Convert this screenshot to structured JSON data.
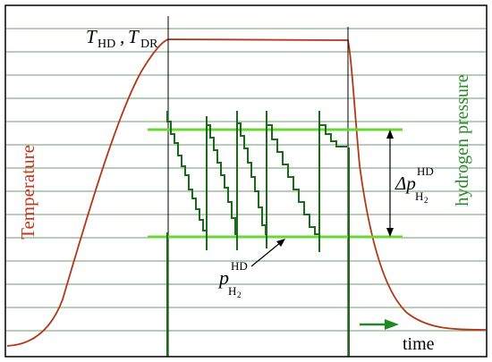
{
  "labels": {
    "temperature_axis": "Temperature",
    "pressure_axis": "hydrogen pressure",
    "time": "time",
    "t_hd_main": "T",
    "t_hd_sub": "HD",
    "comma": ",",
    "t_dr_main": "T",
    "t_dr_sub": "DR",
    "delta_p_main": "Δp",
    "delta_p_sup": "HD",
    "delta_p_sub": "H",
    "delta_p_subsub": "2",
    "p_main": "p",
    "p_sup": "HD",
    "p_sub": "H",
    "p_subsub": "2"
  },
  "colors": {
    "frame": "#000000",
    "grid": "#3a7d3a",
    "temperature_curve": "#b5371a",
    "temperature_text": "#c0361f",
    "pressure_trace": "#1a6b1a",
    "pressure_limit": "#66d933",
    "pressure_text": "#2a8a2a",
    "vertical_markers": "#000000",
    "time_arrow": "#1f8a1f"
  }
}
